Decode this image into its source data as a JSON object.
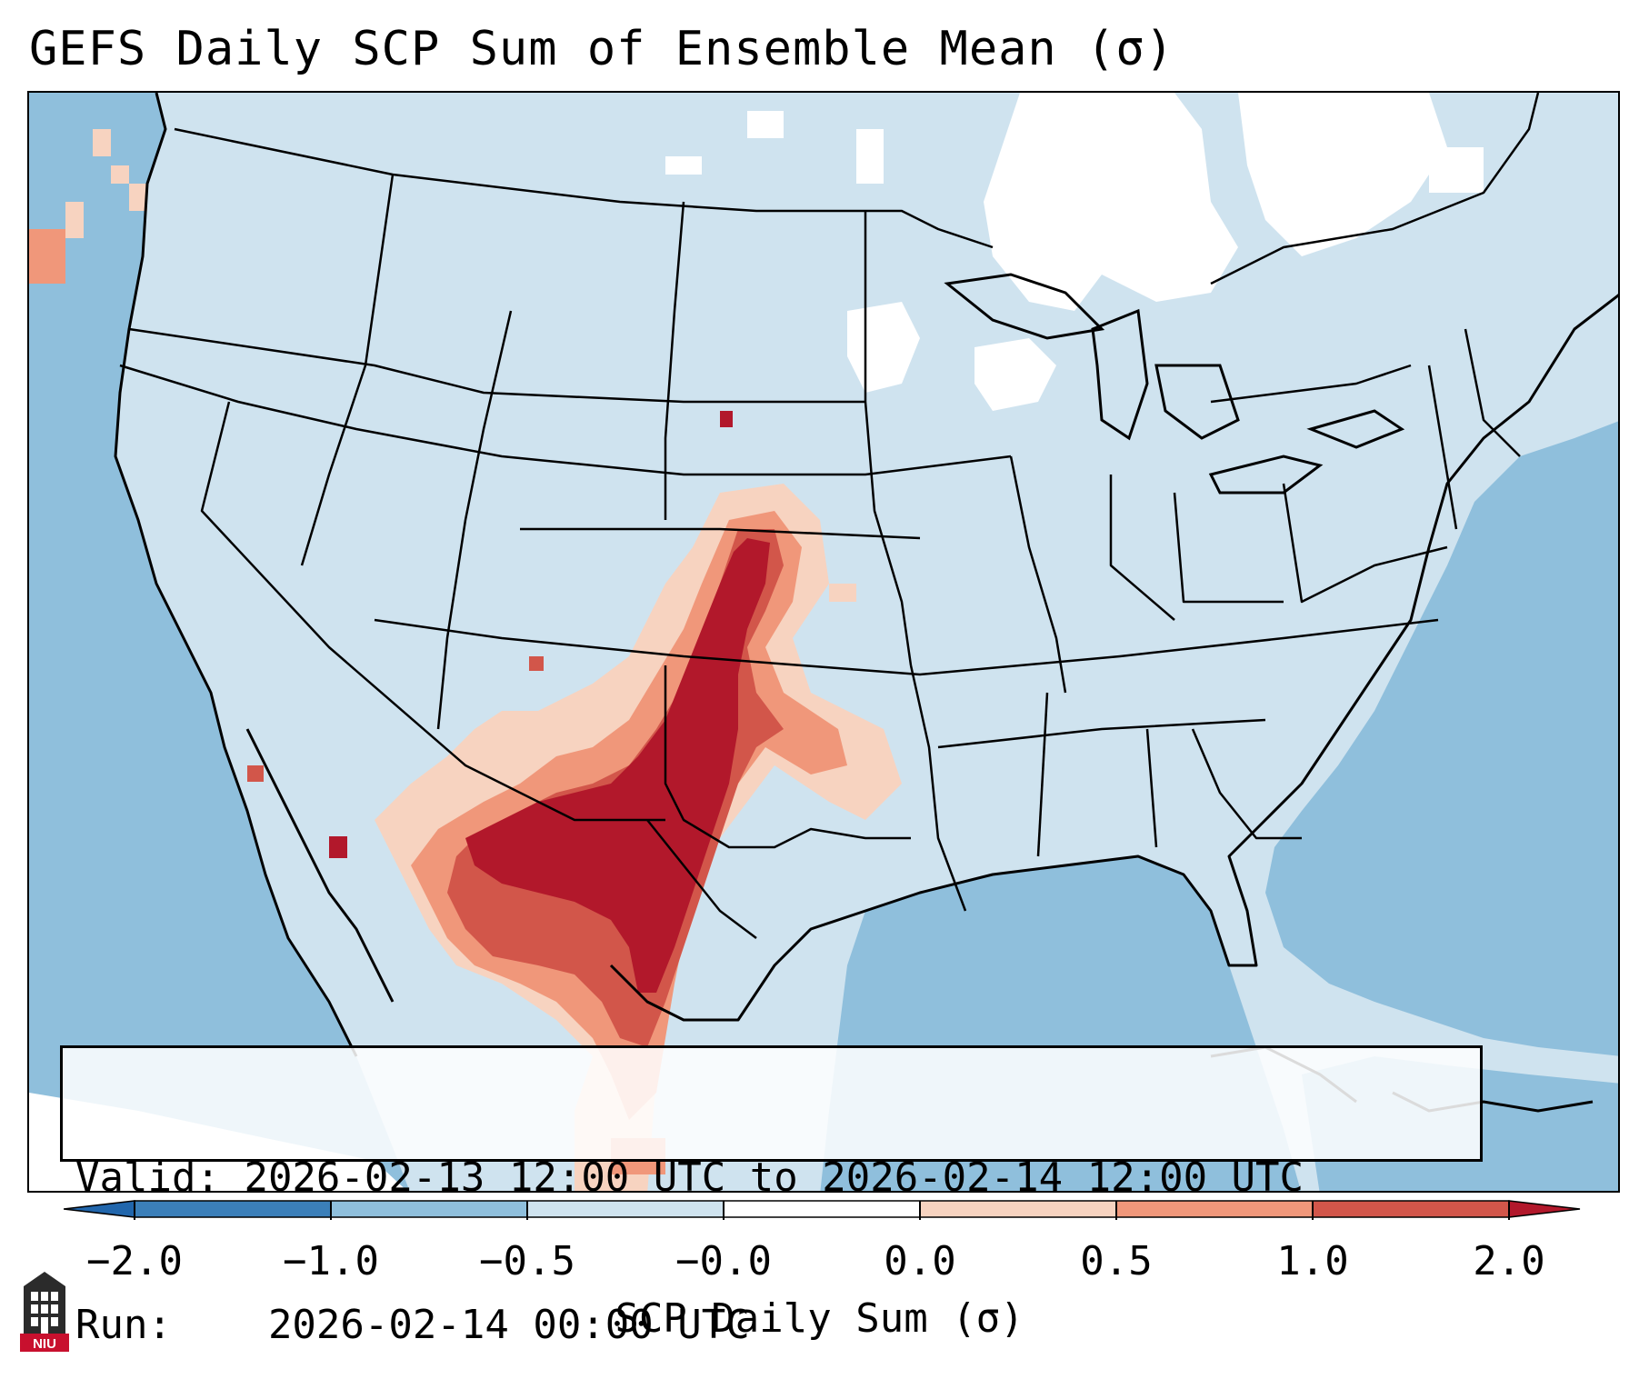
{
  "title": "GEFS Daily SCP Sum of Ensemble Mean (σ)",
  "info": {
    "valid_label": "Valid:",
    "valid_value": "2026-02-13 12:00 UTC to 2026-02-14 12:00 UTC",
    "run_label": "Run:",
    "run_value": "2026-02-14 00:00 UTC"
  },
  "colorbar": {
    "label": "SCP Daily Sum (σ)",
    "ticks": [
      "−2.0",
      "−1.0",
      "−0.5",
      "−0.0",
      "0.0",
      "0.5",
      "1.0",
      "2.0"
    ],
    "colors": [
      "#3b7fb9",
      "#8fbfdc",
      "#cfe3ef",
      "#ffffff",
      "#f7d3c0",
      "#f0977a",
      "#d2564a",
      "#b2182b"
    ],
    "extend": "both"
  },
  "map": {
    "region": "Continental United States and surrounding areas",
    "highlighted_area": "Southern Plains / Texas / New Mexico / Northern Mexico",
    "colors": {
      "ocean": "#8fbfdc",
      "land_background": "#cfe3ef",
      "white_area": "#ffffff",
      "max_anomaly": "#b2182b",
      "high_anomaly": "#d2564a",
      "mid_anomaly": "#f0977a",
      "low_anomaly": "#f7d3c0"
    }
  },
  "logo": {
    "text": "NIU",
    "icon": "niu-logo-icon"
  }
}
